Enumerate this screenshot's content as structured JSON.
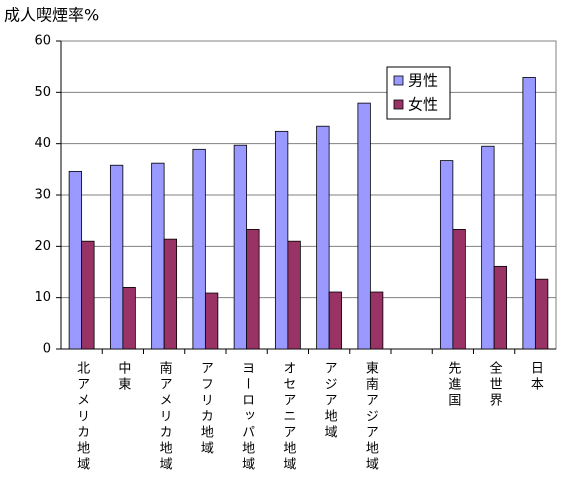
{
  "chart_data": {
    "type": "bar",
    "title": "成人喫煙率%",
    "categories": [
      "北アメリカ地域",
      "中東",
      "南アメリカ地域",
      "アフリカ地域",
      "ヨーロッパ地域",
      "オセアニア地域",
      "アジア地域",
      "東南アジア地域",
      null,
      "先進国",
      "全世界",
      "日本"
    ],
    "series": [
      {
        "name": "男性",
        "color": "#9999ff",
        "values": [
          34.6,
          35.8,
          36.2,
          38.9,
          39.7,
          42.4,
          43.4,
          47.9,
          null,
          36.7,
          39.5,
          52.9
        ]
      },
      {
        "name": "女性",
        "color": "#993366",
        "values": [
          21.0,
          12.0,
          21.4,
          10.9,
          23.3,
          21.0,
          11.1,
          11.1,
          null,
          23.3,
          16.1,
          13.6
        ]
      }
    ],
    "ylim": [
      0,
      60
    ],
    "yticks": [
      0,
      10,
      20,
      30,
      40,
      50,
      60
    ],
    "grid": true,
    "legend": "top-right"
  }
}
